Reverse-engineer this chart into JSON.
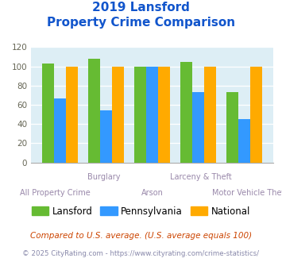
{
  "title_line1": "2019 Lansford",
  "title_line2": "Property Crime Comparison",
  "categories": [
    "All Property Crime",
    "Burglary",
    "Arson",
    "Larceny & Theft",
    "Motor Vehicle Theft"
  ],
  "top_labels": [
    "",
    "Burglary",
    "",
    "Larceny & Theft",
    ""
  ],
  "bot_labels": [
    "All Property Crime",
    "",
    "Arson",
    "",
    "Motor Vehicle Theft"
  ],
  "lansford": [
    103,
    108,
    100,
    105,
    73
  ],
  "pennsylvania": [
    67,
    54,
    100,
    73,
    45
  ],
  "national": [
    100,
    100,
    100,
    100,
    100
  ],
  "lansford_color": "#66bb33",
  "pennsylvania_color": "#3399ff",
  "national_color": "#ffaa00",
  "bg_color": "#ddeef5",
  "title_color": "#1155cc",
  "xlabel_color": "#9988aa",
  "ytick_color": "#666655",
  "ylim": [
    0,
    120
  ],
  "yticks": [
    0,
    20,
    40,
    60,
    80,
    100,
    120
  ],
  "legend_labels": [
    "Lansford",
    "Pennsylvania",
    "National"
  ],
  "footnote1": "Compared to U.S. average. (U.S. average equals 100)",
  "footnote2": "© 2025 CityRating.com - https://www.cityrating.com/crime-statistics/",
  "footnote1_color": "#cc4400",
  "footnote2_color": "#8888aa"
}
